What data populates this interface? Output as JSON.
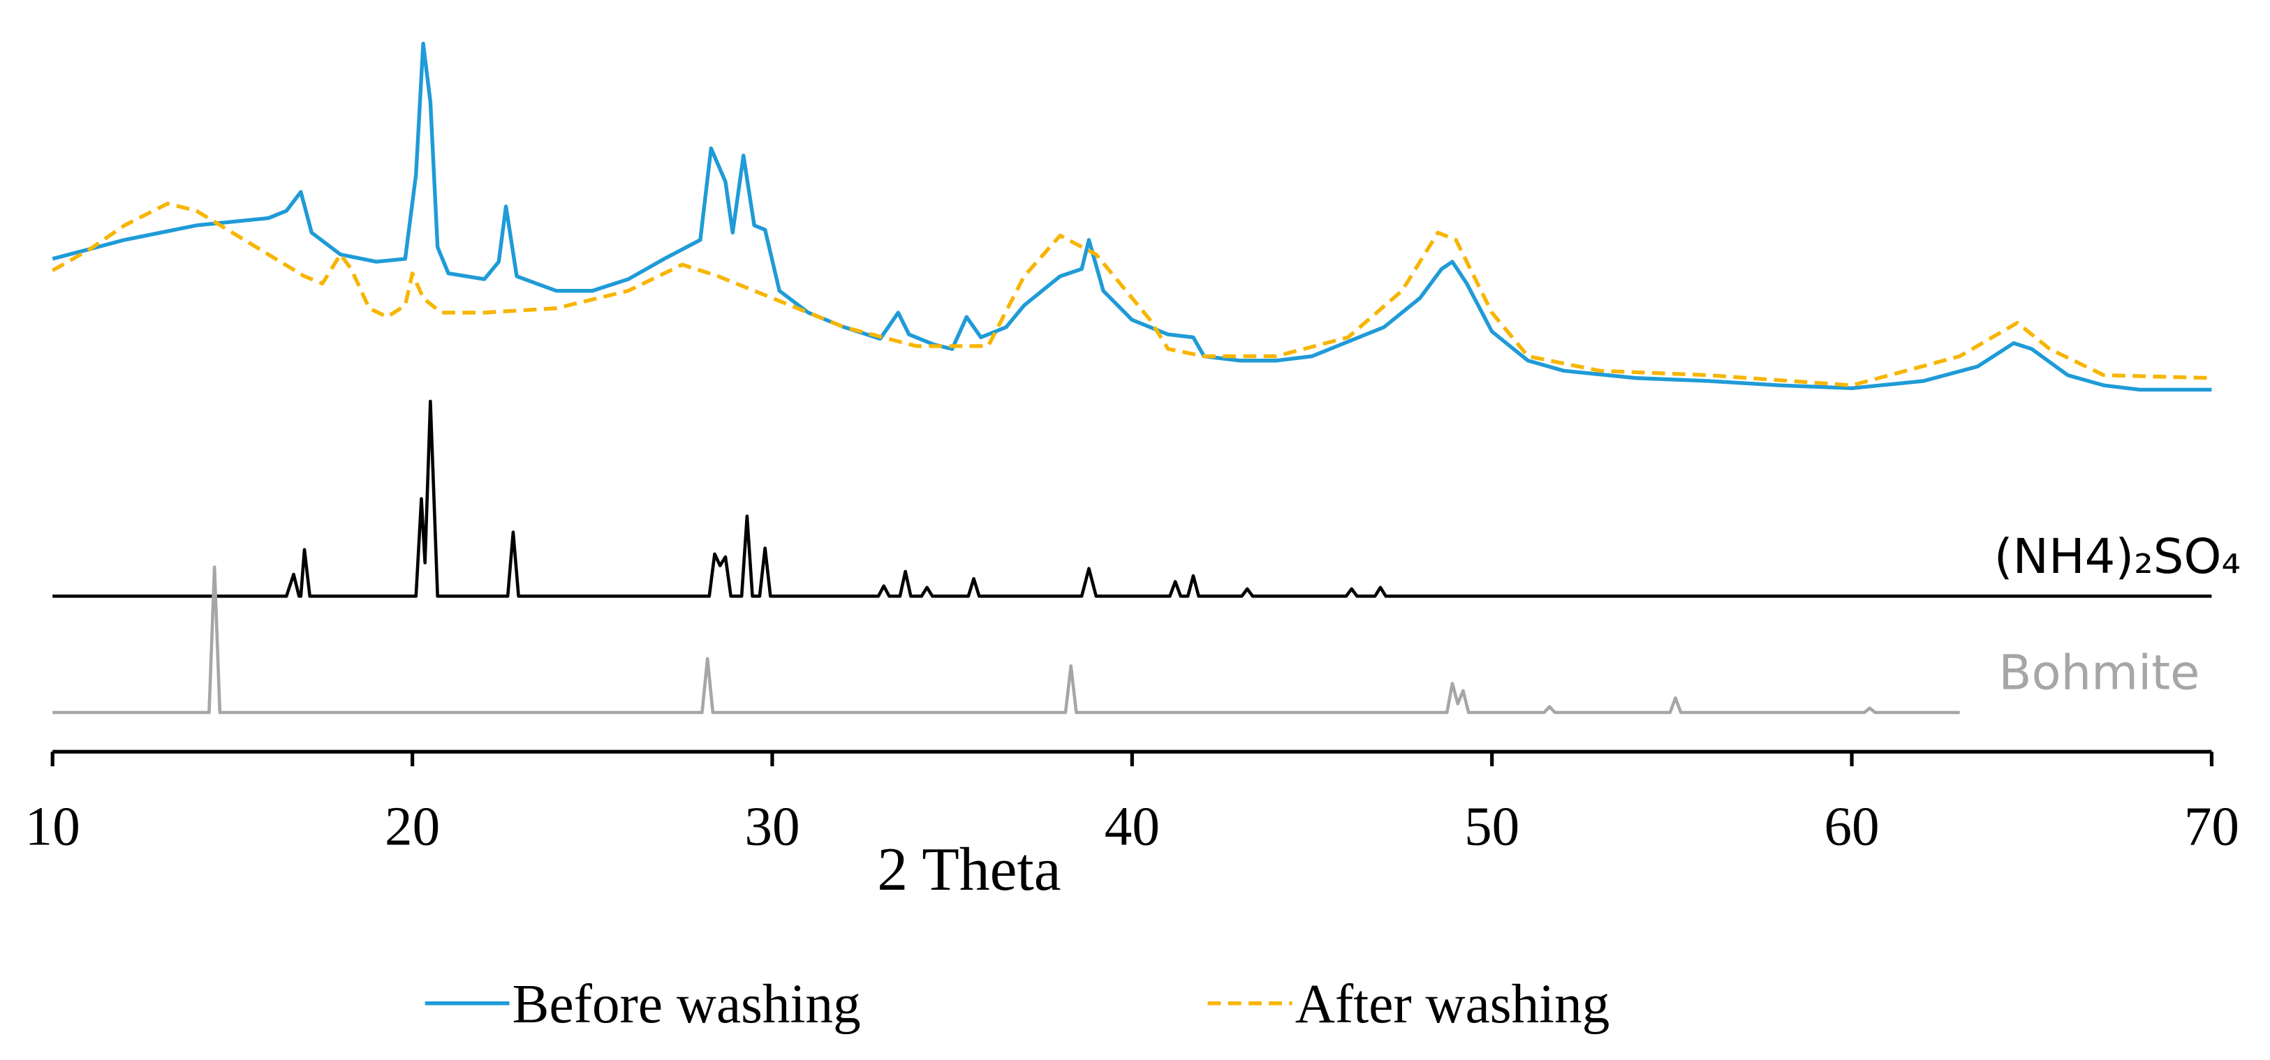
{
  "chart_data": {
    "type": "line",
    "x_label": "2 Theta",
    "xlim": [
      10,
      70
    ],
    "xticks": [
      10,
      20,
      30,
      40,
      50,
      60,
      70
    ],
    "ylim": [
      0,
      500
    ],
    "legend": "bottom",
    "series": [
      {
        "name": "Before washing",
        "color": "#1f9bd7",
        "dash": false,
        "x": [
          10,
          12,
          14,
          16,
          16.5,
          16.9,
          17.2,
          18,
          19,
          19.8,
          20.1,
          20.3,
          20.5,
          20.7,
          21,
          22,
          22.4,
          22.6,
          22.9,
          24,
          25,
          26,
          27,
          28,
          28.3,
          28.7,
          28.9,
          29.2,
          29.5,
          29.8,
          30.2,
          31,
          32,
          33,
          33.5,
          33.8,
          34.5,
          35,
          35.4,
          35.8,
          36.5,
          37,
          38,
          38.6,
          38.8,
          39.2,
          40,
          41,
          41.7,
          42,
          43,
          44,
          45,
          46,
          47,
          48,
          48.6,
          48.9,
          49.3,
          50,
          51,
          52,
          54,
          56,
          58,
          60,
          62,
          63.5,
          64.5,
          65,
          66,
          67,
          68,
          70
        ],
        "values": [
          339,
          352,
          362,
          367,
          372,
          385,
          357,
          342,
          337,
          339,
          397,
          487,
          447,
          347,
          329,
          325,
          337,
          375,
          327,
          317,
          317,
          325,
          339,
          352,
          415,
          392,
          357,
          410,
          362,
          359,
          317,
          302,
          292,
          284,
          302,
          287,
          280,
          277,
          299,
          285,
          292,
          307,
          327,
          332,
          352,
          317,
          297,
          287,
          285,
          272,
          269,
          269,
          272,
          282,
          292,
          312,
          332,
          337,
          322,
          289,
          269,
          262,
          257,
          255,
          252,
          250,
          255,
          265,
          281,
          277,
          259,
          252,
          249,
          249
        ]
      },
      {
        "name": "After washing",
        "color": "#f7b500",
        "dash": true,
        "x": [
          10,
          11,
          12,
          13.2,
          14,
          15,
          16,
          17,
          17.5,
          18,
          18.3,
          18.8,
          19.3,
          19.8,
          20,
          20.3,
          20.8,
          22,
          24,
          26,
          27.5,
          28.5,
          30,
          32,
          34,
          36,
          37,
          38,
          39,
          40,
          40.5,
          41,
          42,
          44,
          46,
          47.5,
          48.5,
          49,
          50,
          51,
          53,
          56,
          60,
          63,
          64.6,
          65.5,
          67,
          70
        ],
        "values": [
          331,
          345,
          362,
          377,
          372,
          357,
          342,
          327,
          322,
          342,
          332,
          305,
          299,
          307,
          329,
          312,
          302,
          302,
          305,
          317,
          335,
          327,
          312,
          292,
          279,
          279,
          327,
          355,
          342,
          312,
          297,
          277,
          272,
          272,
          285,
          317,
          357,
          352,
          302,
          272,
          262,
          259,
          252,
          272,
          295,
          277,
          259,
          257
        ]
      }
    ],
    "reference_patterns": [
      {
        "label": "(NH4)₂SO₄",
        "color": "#000000",
        "x": [
          10,
          16.5,
          16.7,
          16.85,
          16.9,
          17.0,
          17.15,
          20.1,
          20.25,
          20.35,
          20.5,
          20.7,
          22.65,
          22.8,
          22.95,
          28.25,
          28.4,
          28.55,
          28.7,
          28.85,
          29.15,
          29.3,
          29.45,
          29.65,
          29.8,
          29.95,
          32.95,
          33.1,
          33.25,
          33.55,
          33.7,
          33.85,
          34.15,
          34.3,
          34.45,
          35.45,
          35.6,
          35.75,
          38.6,
          38.8,
          39.0,
          41.05,
          41.2,
          41.35,
          41.55,
          41.7,
          41.85,
          43.05,
          43.2,
          43.35,
          45.95,
          46.1,
          46.25,
          46.75,
          46.9,
          47.05,
          70
        ],
        "values": [
          107,
          107,
          122,
          107,
          107,
          139,
          107,
          107,
          174,
          130,
          241,
          107,
          107,
          151,
          107,
          107,
          136,
          128,
          134,
          107,
          107,
          162,
          107,
          107,
          140,
          107,
          107,
          114,
          107,
          107,
          124,
          107,
          107,
          113,
          107,
          107,
          119,
          107,
          107,
          126,
          107,
          107,
          117,
          107,
          107,
          121,
          107,
          107,
          112,
          107,
          107,
          112,
          107,
          107,
          113,
          107,
          107
        ]
      },
      {
        "label": "Bohmite",
        "color": "#a6a6a6",
        "x": [
          10,
          14.35,
          14.5,
          14.65,
          28.05,
          28.2,
          28.35,
          38.15,
          38.3,
          38.45,
          48.75,
          48.9,
          49.05,
          49.2,
          49.35,
          51.45,
          51.6,
          51.75,
          54.95,
          55.1,
          55.25,
          60.35,
          60.5,
          60.65,
          63
        ],
        "values": [
          27,
          27,
          127,
          27,
          27,
          64,
          27,
          27,
          59,
          27,
          27,
          47,
          33,
          42,
          27,
          27,
          31,
          27,
          27,
          37,
          27,
          27,
          30,
          27,
          27
        ]
      }
    ]
  }
}
